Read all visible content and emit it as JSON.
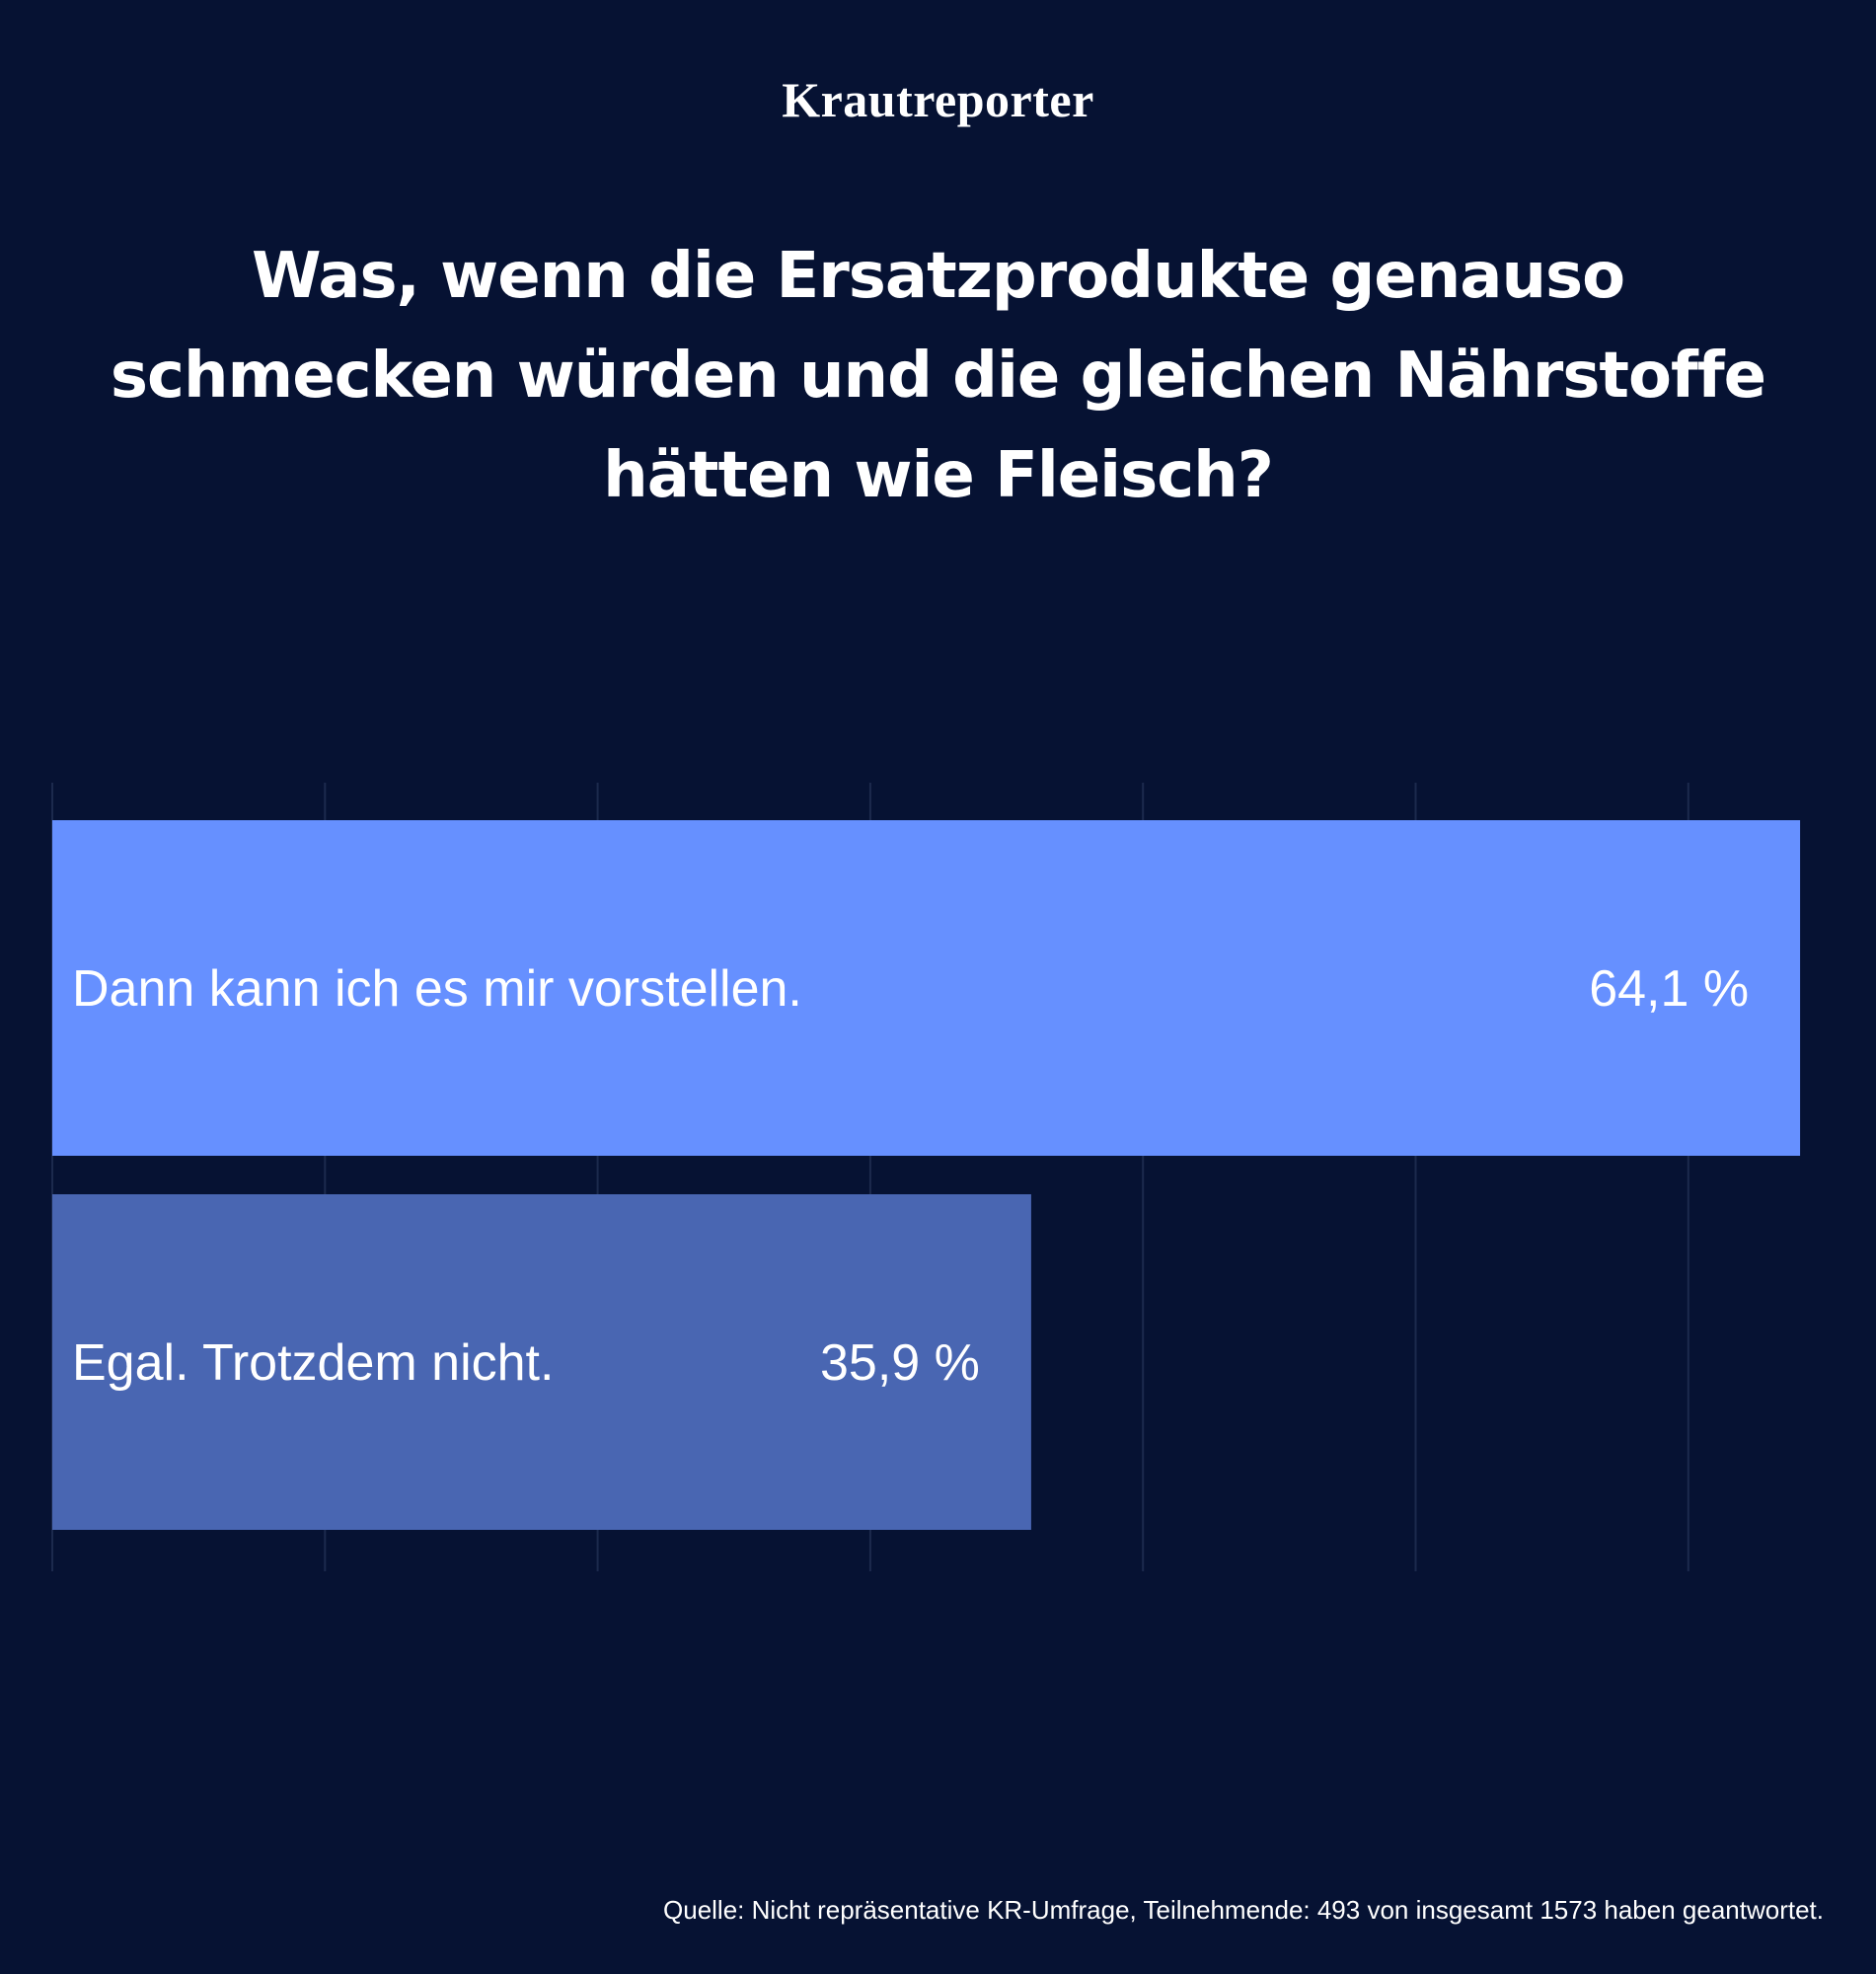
{
  "brand": "Krautreporter",
  "title": "Was, wenn die Ersatzprodukte genauso schmecken würden und die gleichen Nährstoffe hätten wie Fleisch?",
  "source": "Quelle: Nicht repräsentative KR-Umfrage, Teilnehmende: 493 von insgesamt 1573 haben geantwortet.",
  "colors": {
    "background": "#061233",
    "bar_primary": "#6690ff",
    "bar_secondary": "#4966b2",
    "gridline": "#1c2a4d"
  },
  "chart_data": {
    "type": "bar",
    "orientation": "horizontal",
    "categories": [
      "Dann kann ich es mir vorstellen.",
      "Egal. Trotzdem nicht."
    ],
    "values": [
      64.1,
      35.9
    ],
    "value_labels": [
      "64,1 %",
      "35,9 %"
    ],
    "xlim": [
      0,
      60
    ],
    "grid": true,
    "legend": "none"
  }
}
